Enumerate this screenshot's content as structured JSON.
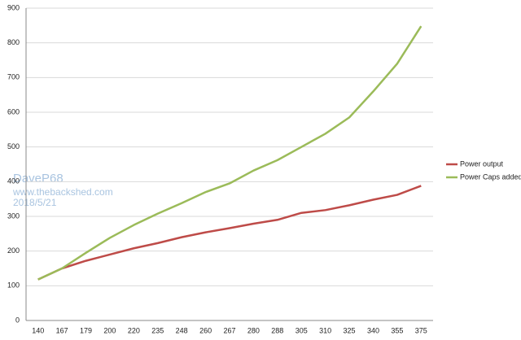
{
  "chart_data": {
    "type": "line",
    "categories": [
      "140",
      "167",
      "179",
      "200",
      "220",
      "235",
      "248",
      "260",
      "267",
      "280",
      "288",
      "305",
      "310",
      "325",
      "340",
      "355",
      "375"
    ],
    "series": [
      {
        "name": "Power output",
        "color": "#be4b48",
        "values": [
          118,
          150,
          172,
          190,
          208,
          223,
          240,
          254,
          266,
          279,
          290,
          310,
          318,
          332,
          348,
          362,
          388
        ]
      },
      {
        "name": "Power Caps added",
        "color": "#9bbb59",
        "values": [
          118,
          150,
          195,
          238,
          275,
          308,
          338,
          370,
          395,
          432,
          462,
          500,
          538,
          585,
          660,
          740,
          848
        ]
      }
    ],
    "ylim": [
      0,
      900
    ],
    "yticks": [
      0,
      100,
      200,
      300,
      400,
      500,
      600,
      700,
      800,
      900
    ],
    "grid": true,
    "legend": "right",
    "annotations": [
      "DaveP68",
      "www.thebackshed.com",
      "2018/5/21"
    ]
  }
}
